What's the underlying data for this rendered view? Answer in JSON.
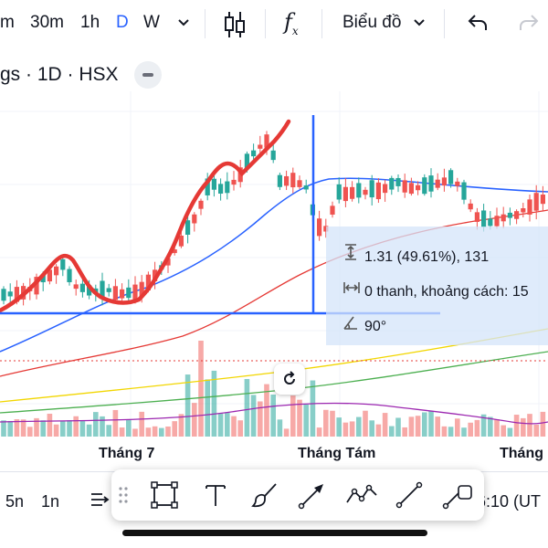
{
  "toolbar": {
    "intervals": [
      "m",
      "30m",
      "1h",
      "D",
      "W"
    ],
    "active_interval": "D",
    "chart_type_label": "Biểu đồ",
    "indicator_label": "f",
    "indicator_sub": "x"
  },
  "symbol": {
    "title": "gs · 1D · HSX"
  },
  "measure": {
    "price_change": "1.31 (49.61%), 131",
    "bars_distance": "0 thanh, khoảng cách: 15",
    "angle": "90°"
  },
  "xaxis": {
    "labels": [
      "Tháng 7",
      "Tháng Tám",
      "Tháng"
    ]
  },
  "bottombar": {
    "range_5n": "5n",
    "range_1n": "1n",
    "clock": "6:10 (UT"
  },
  "drawing_tools": [
    "drag-handle",
    "rectangle",
    "text",
    "brush",
    "arrow",
    "path",
    "trend-line",
    "long-position"
  ],
  "colors": {
    "up": "#26a69a",
    "down": "#ef5350",
    "accent": "#2962ff",
    "drawing": "#e53935"
  }
}
